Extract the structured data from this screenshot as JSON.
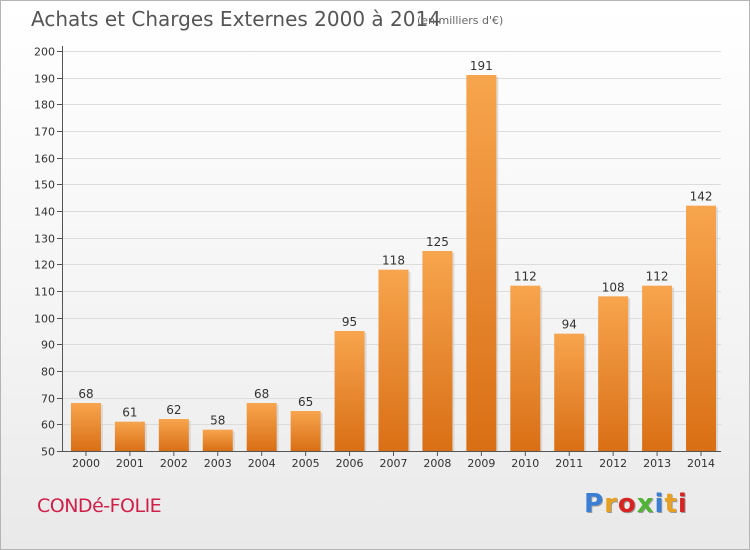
{
  "header": {
    "title": "Achats et Charges Externes 2000 à 2014",
    "subtitle": "(en milliers d'€)"
  },
  "footer": {
    "commune": "CONDé-FOLIE",
    "logo_text": "Proxiti",
    "logo_colors": [
      "#3a7fd5",
      "#e8a020",
      "#d62424",
      "#52b436",
      "#3a7fd5",
      "#e8a020",
      "#d62424"
    ]
  },
  "colors": {
    "bar_top": "#f7a54e",
    "bar_bottom": "#d96f15",
    "grid": "#dcdcdc",
    "axis_text": "#333333"
  },
  "chart_data": {
    "type": "bar",
    "categories": [
      "2000",
      "2001",
      "2002",
      "2003",
      "2004",
      "2005",
      "2006",
      "2007",
      "2008",
      "2009",
      "2010",
      "2011",
      "2012",
      "2013",
      "2014"
    ],
    "values": [
      68,
      61,
      62,
      58,
      68,
      65,
      95,
      118,
      125,
      191,
      112,
      94,
      108,
      112,
      142
    ],
    "data_labels": [
      "68",
      "61",
      "62",
      "58",
      "68",
      "65",
      "95",
      "118",
      "125",
      "191",
      "112",
      "94",
      "108",
      "112",
      "142"
    ],
    "yticks": [
      "50",
      "60",
      "70",
      "80",
      "90",
      "100",
      "110",
      "120",
      "130",
      "140",
      "150",
      "160",
      "170",
      "180",
      "190",
      "200"
    ],
    "title": "Achats et Charges Externes 2000 à 2014",
    "xlabel": "",
    "ylabel": "",
    "ylim": [
      50,
      200
    ],
    "grid": true,
    "legend": "none"
  }
}
